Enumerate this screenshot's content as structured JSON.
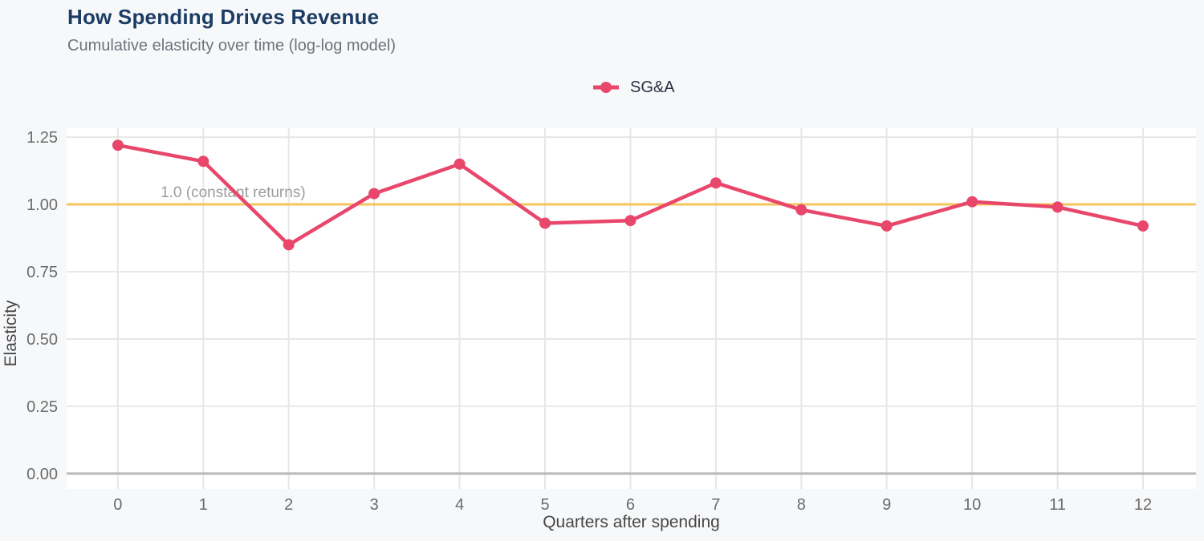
{
  "chart_data": {
    "type": "line",
    "title": "How Spending Drives Revenue",
    "subtitle": "Cumulative elasticity over time (log-log model)",
    "xlabel": "Quarters after spending",
    "ylabel": "Elasticity",
    "x": [
      0,
      1,
      2,
      3,
      4,
      5,
      6,
      7,
      8,
      9,
      10,
      11,
      12
    ],
    "series": [
      {
        "name": "SG&A",
        "color": "#E8476B",
        "marker": "circle",
        "values": [
          1.22,
          1.16,
          0.85,
          1.04,
          1.15,
          0.93,
          0.94,
          1.08,
          0.98,
          0.92,
          1.01,
          0.99,
          0.92
        ]
      }
    ],
    "xlim": [
      -0.6,
      12.62
    ],
    "ylim": [
      -0.057,
      1.283
    ],
    "xticks": {
      "values": [
        0,
        1,
        2,
        3,
        4,
        5,
        6,
        7,
        8,
        9,
        10,
        11,
        12
      ],
      "labels": [
        "0",
        "1",
        "2",
        "3",
        "4",
        "5",
        "6",
        "7",
        "8",
        "9",
        "10",
        "11",
        "12"
      ]
    },
    "yticks": {
      "values": [
        0,
        0.25,
        0.5,
        0.75,
        1,
        1.25
      ],
      "labels": [
        "0.00",
        "0.25",
        "0.50",
        "0.75",
        "1.00",
        "1.25"
      ]
    },
    "ref_line": {
      "y": 1.0,
      "label": "1.0 (constant returns)",
      "color": "#F5C55C"
    },
    "legend": {
      "position": "top-center",
      "entries": [
        "SG&A"
      ]
    },
    "grid": true,
    "colors": {
      "figure_bg": "#F7F8FA",
      "plot_bg": "#FFFFFF",
      "grid": "#E7E7E7",
      "zero_line": "#B9B9B9",
      "title": "#1C3C64",
      "subtitle": "#6E737C",
      "tick": "#6B6B6B",
      "axis_title": "#474747",
      "annotation": "#9C9C9C",
      "legend_text": "#2D3142"
    }
  }
}
